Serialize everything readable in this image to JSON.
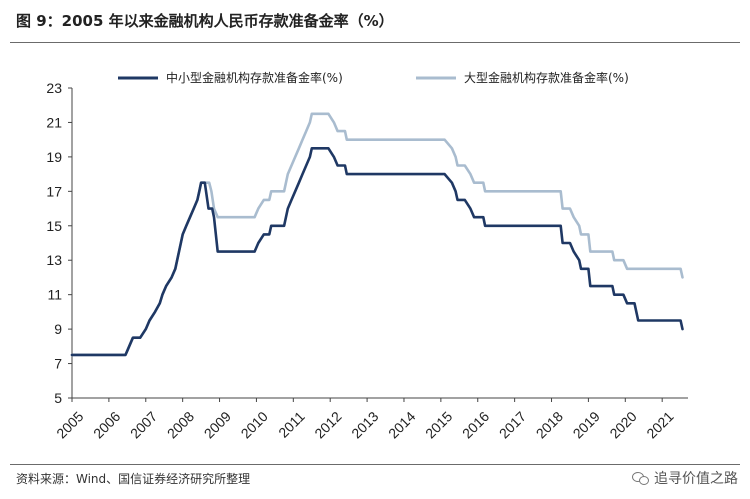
{
  "figure": {
    "title": "图 9：2005 年以来金融机构人民币存款准备金率（%）",
    "source": "资料来源：Wind、国信证券经济研究所整理",
    "watermark": "追寻价值之路",
    "watermark_icon": "wechat-icon"
  },
  "chart_data": {
    "type": "line",
    "xlabel": "",
    "ylabel": "",
    "x_tick_labels": [
      "2005",
      "2006",
      "2007",
      "2008",
      "2009",
      "2010",
      "2011",
      "2012",
      "2013",
      "2014",
      "2015",
      "2016",
      "2017",
      "2018",
      "2019",
      "2020",
      "2021"
    ],
    "xlim": [
      2005.0,
      2021.7
    ],
    "ylim": [
      5,
      23
    ],
    "y_ticks": [
      5,
      7,
      9,
      11,
      13,
      15,
      17,
      19,
      21,
      23
    ],
    "grid": false,
    "legend_position": "top",
    "series": [
      {
        "name": "中小型金融机构存款准备金率(%)",
        "color": "#1f3864",
        "points": [
          [
            2005.0,
            7.5
          ],
          [
            2006.45,
            7.5
          ],
          [
            2006.55,
            8.0
          ],
          [
            2006.65,
            8.5
          ],
          [
            2006.85,
            8.5
          ],
          [
            2007.0,
            9.0
          ],
          [
            2007.1,
            9.5
          ],
          [
            2007.25,
            10.0
          ],
          [
            2007.38,
            10.5
          ],
          [
            2007.45,
            11.0
          ],
          [
            2007.55,
            11.5
          ],
          [
            2007.7,
            12.0
          ],
          [
            2007.8,
            12.5
          ],
          [
            2007.9,
            13.5
          ],
          [
            2008.0,
            14.5
          ],
          [
            2008.1,
            15.0
          ],
          [
            2008.2,
            15.5
          ],
          [
            2008.3,
            16.0
          ],
          [
            2008.4,
            16.5
          ],
          [
            2008.45,
            17.0
          ],
          [
            2008.5,
            17.5
          ],
          [
            2008.6,
            17.5
          ],
          [
            2008.7,
            16.0
          ],
          [
            2008.8,
            16.0
          ],
          [
            2008.85,
            15.5
          ],
          [
            2008.95,
            13.5
          ],
          [
            2009.95,
            13.5
          ],
          [
            2010.05,
            14.0
          ],
          [
            2010.2,
            14.5
          ],
          [
            2010.35,
            14.5
          ],
          [
            2010.4,
            15.0
          ],
          [
            2010.75,
            15.0
          ],
          [
            2010.85,
            16.0
          ],
          [
            2010.95,
            16.5
          ],
          [
            2011.05,
            17.0
          ],
          [
            2011.15,
            17.5
          ],
          [
            2011.25,
            18.0
          ],
          [
            2011.35,
            18.5
          ],
          [
            2011.45,
            19.0
          ],
          [
            2011.5,
            19.5
          ],
          [
            2011.95,
            19.5
          ],
          [
            2012.1,
            19.0
          ],
          [
            2012.2,
            18.5
          ],
          [
            2012.4,
            18.5
          ],
          [
            2012.45,
            18.0
          ],
          [
            2015.1,
            18.0
          ],
          [
            2015.3,
            17.5
          ],
          [
            2015.4,
            17.0
          ],
          [
            2015.45,
            16.5
          ],
          [
            2015.65,
            16.5
          ],
          [
            2015.8,
            16.0
          ],
          [
            2015.9,
            15.5
          ],
          [
            2016.15,
            15.5
          ],
          [
            2016.2,
            15.0
          ],
          [
            2018.25,
            15.0
          ],
          [
            2018.3,
            14.0
          ],
          [
            2018.5,
            14.0
          ],
          [
            2018.6,
            13.5
          ],
          [
            2018.75,
            13.0
          ],
          [
            2018.8,
            12.5
          ],
          [
            2019.0,
            12.5
          ],
          [
            2019.05,
            11.5
          ],
          [
            2019.65,
            11.5
          ],
          [
            2019.7,
            11.0
          ],
          [
            2019.95,
            11.0
          ],
          [
            2020.05,
            10.5
          ],
          [
            2020.25,
            10.5
          ],
          [
            2020.35,
            9.5
          ],
          [
            2021.5,
            9.5
          ],
          [
            2021.55,
            9.0
          ]
        ]
      },
      {
        "name": "大型金融机构存款准备金率(%)",
        "color": "#a9bccf",
        "points": [
          [
            2005.0,
            7.5
          ],
          [
            2006.45,
            7.5
          ],
          [
            2006.55,
            8.0
          ],
          [
            2006.65,
            8.5
          ],
          [
            2006.85,
            8.5
          ],
          [
            2007.0,
            9.0
          ],
          [
            2007.1,
            9.5
          ],
          [
            2007.25,
            10.0
          ],
          [
            2007.38,
            10.5
          ],
          [
            2007.45,
            11.0
          ],
          [
            2007.55,
            11.5
          ],
          [
            2007.7,
            12.0
          ],
          [
            2007.8,
            12.5
          ],
          [
            2007.9,
            13.5
          ],
          [
            2008.0,
            14.5
          ],
          [
            2008.1,
            15.0
          ],
          [
            2008.2,
            15.5
          ],
          [
            2008.3,
            16.0
          ],
          [
            2008.4,
            16.5
          ],
          [
            2008.45,
            17.0
          ],
          [
            2008.5,
            17.5
          ],
          [
            2008.72,
            17.5
          ],
          [
            2008.78,
            17.0
          ],
          [
            2008.85,
            16.0
          ],
          [
            2008.95,
            15.5
          ],
          [
            2009.95,
            15.5
          ],
          [
            2010.05,
            16.0
          ],
          [
            2010.2,
            16.5
          ],
          [
            2010.35,
            16.5
          ],
          [
            2010.4,
            17.0
          ],
          [
            2010.75,
            17.0
          ],
          [
            2010.85,
            18.0
          ],
          [
            2010.95,
            18.5
          ],
          [
            2011.05,
            19.0
          ],
          [
            2011.15,
            19.5
          ],
          [
            2011.25,
            20.0
          ],
          [
            2011.35,
            20.5
          ],
          [
            2011.45,
            21.0
          ],
          [
            2011.5,
            21.5
          ],
          [
            2011.95,
            21.5
          ],
          [
            2012.1,
            21.0
          ],
          [
            2012.2,
            20.5
          ],
          [
            2012.4,
            20.5
          ],
          [
            2012.45,
            20.0
          ],
          [
            2015.1,
            20.0
          ],
          [
            2015.3,
            19.5
          ],
          [
            2015.4,
            19.0
          ],
          [
            2015.45,
            18.5
          ],
          [
            2015.65,
            18.5
          ],
          [
            2015.8,
            18.0
          ],
          [
            2015.9,
            17.5
          ],
          [
            2016.15,
            17.5
          ],
          [
            2016.2,
            17.0
          ],
          [
            2018.25,
            17.0
          ],
          [
            2018.3,
            16.0
          ],
          [
            2018.5,
            16.0
          ],
          [
            2018.6,
            15.5
          ],
          [
            2018.75,
            15.0
          ],
          [
            2018.8,
            14.5
          ],
          [
            2019.0,
            14.5
          ],
          [
            2019.05,
            13.5
          ],
          [
            2019.65,
            13.5
          ],
          [
            2019.7,
            13.0
          ],
          [
            2019.95,
            13.0
          ],
          [
            2020.05,
            12.5
          ],
          [
            2021.5,
            12.5
          ],
          [
            2021.55,
            12.0
          ]
        ]
      }
    ]
  }
}
